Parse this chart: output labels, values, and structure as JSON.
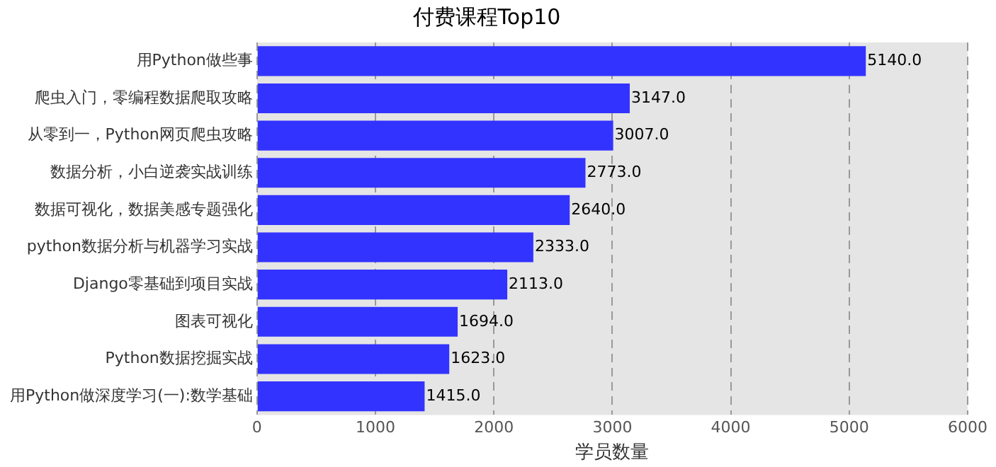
{
  "chart_data": {
    "type": "bar",
    "orientation": "horizontal",
    "title": "付费课程Top10",
    "xlabel": "学员数量",
    "categories": [
      "用Python做些事",
      "爬虫入门，零编程数据爬取攻略",
      "从零到一，Python网页爬虫攻略",
      "数据分析，小白逆袭实战训练",
      "数据可视化，数据美感专题强化",
      "python数据分析与机器学习实战",
      "Django零基础到项目实战",
      "图表可视化",
      "Python数据挖掘实战",
      "用Python做深度学习(一):数学基础"
    ],
    "values": [
      5140,
      3147,
      3007,
      2773,
      2640,
      2333,
      2113,
      1694,
      1623,
      1415
    ],
    "value_labels": [
      "5140.0",
      "3147.0",
      "3007.0",
      "2773.0",
      "2640.0",
      "2333.0",
      "2113.0",
      "1694.0",
      "1623.0",
      "1415.0"
    ],
    "color": "#3333ff",
    "xlim": [
      0,
      6000
    ],
    "xticks": [
      0,
      1000,
      2000,
      3000,
      4000,
      5000,
      6000
    ],
    "grid": "x",
    "legend": false
  }
}
